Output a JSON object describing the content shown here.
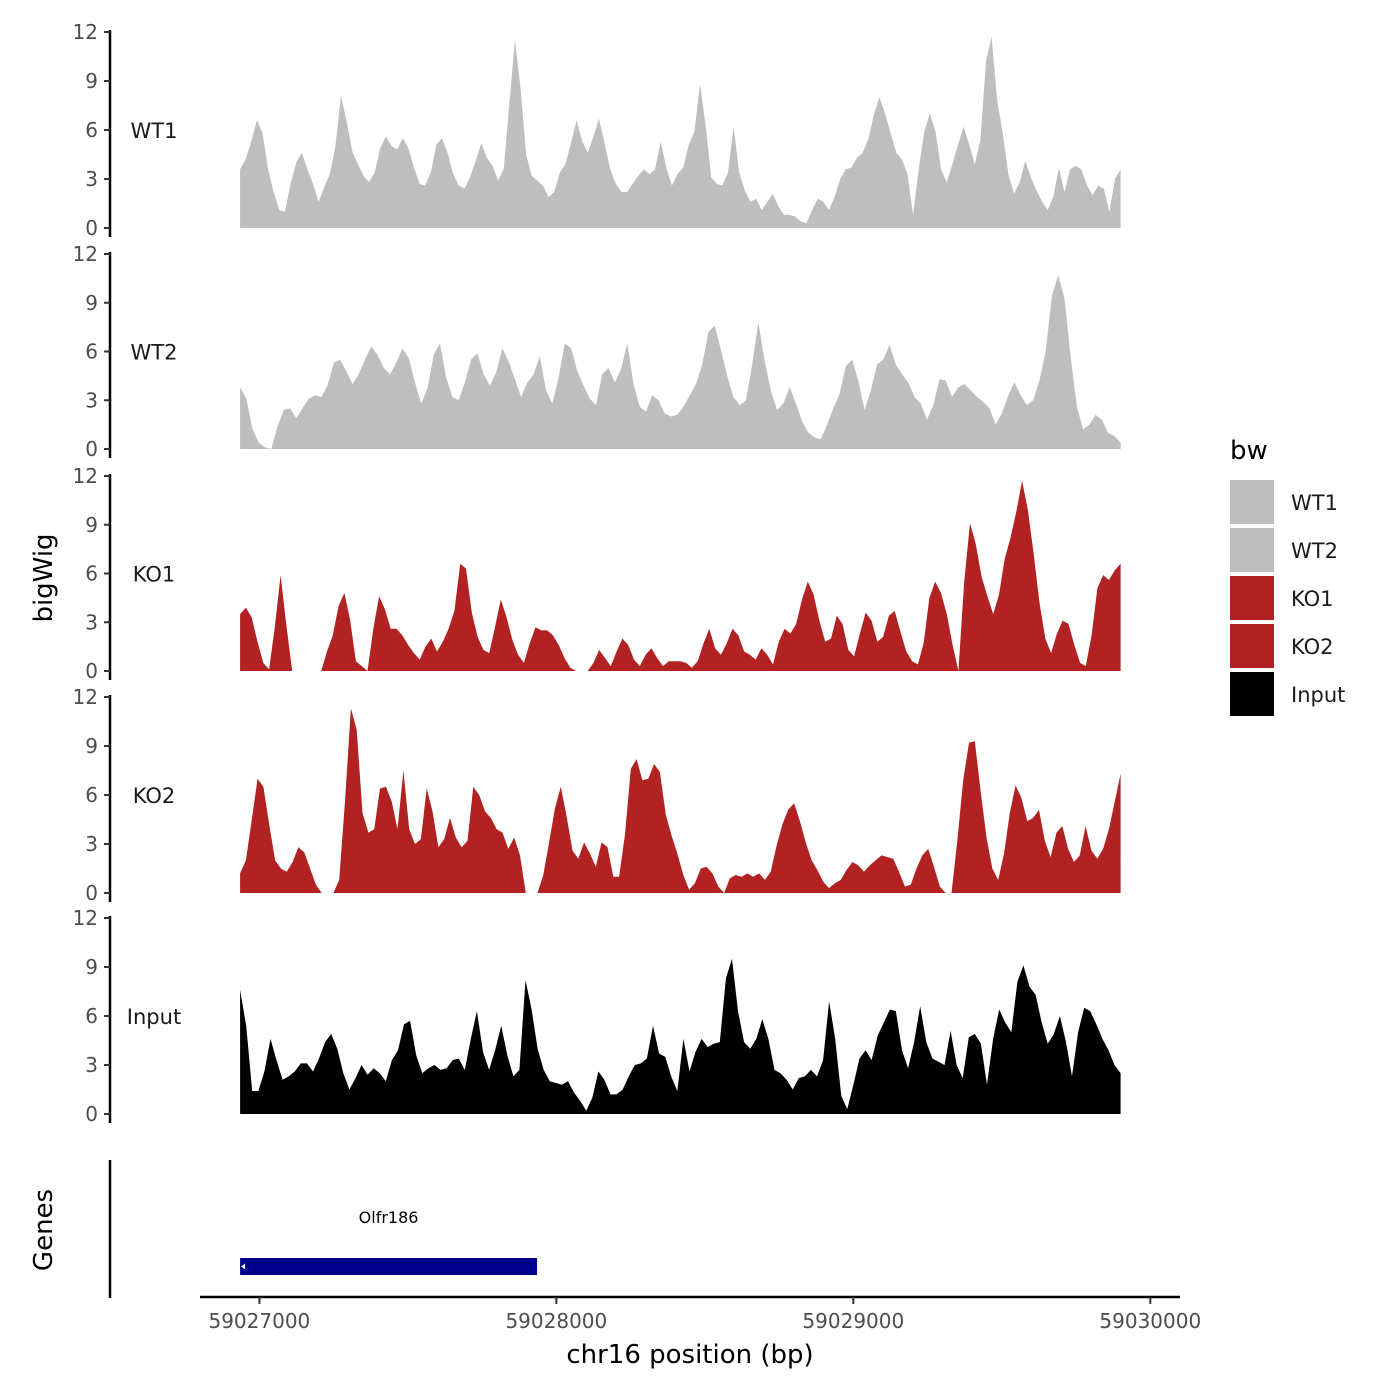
{
  "chart_data": {
    "type": "area",
    "title": "",
    "ylabel": "bigWig",
    "xlabel": "chr16 position (bp)",
    "ylim": [
      0,
      12
    ],
    "yticks": [
      0,
      3,
      6,
      9,
      12
    ],
    "xlim": [
      59026800,
      59030100
    ],
    "xticks": [
      59027000,
      59028000,
      59029000,
      59030000
    ],
    "xtick_labels": [
      "59027000",
      "59028000",
      "59029000",
      "59030000"
    ],
    "x_start": 59026935,
    "x_end": 59029900,
    "legend": {
      "title": "bw",
      "position": "right",
      "entries": [
        {
          "label": "WT1",
          "color": "#bebebe"
        },
        {
          "label": "WT2",
          "color": "#bebebe"
        },
        {
          "label": "KO1",
          "color": "#b22222"
        },
        {
          "label": "KO2",
          "color": "#b22222"
        },
        {
          "label": "Input",
          "color": "#000000"
        }
      ]
    },
    "series": [
      {
        "name": "WT1",
        "color": "#bebebe",
        "values": [
          3.6,
          4.2,
          5.3,
          6.6,
          5.8,
          3.6,
          2.2,
          1.1,
          1.0,
          2.7,
          4.0,
          4.6,
          3.6,
          2.7,
          1.6,
          2.5,
          3.3,
          5.0,
          8.1,
          6.5,
          4.7,
          3.9,
          3.2,
          2.8,
          3.4,
          4.9,
          5.6,
          5.0,
          4.8,
          5.5,
          4.9,
          3.7,
          2.7,
          2.6,
          3.4,
          5.1,
          5.5,
          4.6,
          3.3,
          2.6,
          2.4,
          3.1,
          4.1,
          5.2,
          4.3,
          3.8,
          2.9,
          3.6,
          7.6,
          11.5,
          8.6,
          4.5,
          3.2,
          2.9,
          2.6,
          1.9,
          2.2,
          3.4,
          3.9,
          5.2,
          6.6,
          5.3,
          4.6,
          5.6,
          6.7,
          5.2,
          3.6,
          2.7,
          2.2,
          2.2,
          2.7,
          3.2,
          3.6,
          3.3,
          3.6,
          5.3,
          3.7,
          2.6,
          3.3,
          3.7,
          5.1,
          5.9,
          8.8,
          6.3,
          3.1,
          2.7,
          2.6,
          3.4,
          6.2,
          3.4,
          2.3,
          1.6,
          1.8,
          1.1,
          1.6,
          2.1,
          1.3,
          0.8,
          0.8,
          0.7,
          0.4,
          0.3,
          1.1,
          1.8,
          1.6,
          1.1,
          1.9,
          3.0,
          3.6,
          3.7,
          4.3,
          4.6,
          5.4,
          6.9,
          8.0,
          7.0,
          5.8,
          4.6,
          4.2,
          3.3,
          0.8,
          3.6,
          5.9,
          7.0,
          5.9,
          3.6,
          2.8,
          3.9,
          5.1,
          6.2,
          5.1,
          3.9,
          5.4,
          10.2,
          11.7,
          7.8,
          5.8,
          3.3,
          2.1,
          2.8,
          4.1,
          3.1,
          2.3,
          1.6,
          1.1,
          1.9,
          3.7,
          2.2,
          3.6,
          3.8,
          3.6,
          2.6,
          2.0,
          2.6,
          2.4,
          1.0,
          3.0,
          3.6
        ]
      },
      {
        "name": "WT2",
        "color": "#bebebe",
        "values": [
          3.8,
          3.1,
          1.2,
          0.4,
          0.1,
          0.0,
          1.4,
          2.4,
          2.5,
          1.9,
          2.5,
          3.1,
          3.3,
          3.2,
          3.9,
          5.3,
          5.5,
          4.8,
          4.0,
          4.6,
          5.5,
          6.3,
          5.8,
          5.0,
          4.6,
          5.3,
          6.2,
          5.6,
          4.1,
          2.8,
          3.7,
          5.8,
          6.5,
          4.4,
          3.2,
          3.0,
          4.1,
          5.5,
          5.9,
          4.6,
          3.9,
          4.7,
          6.2,
          5.4,
          4.3,
          3.2,
          4.1,
          4.6,
          5.7,
          3.6,
          2.8,
          4.4,
          6.5,
          6.2,
          4.8,
          3.9,
          3.1,
          2.7,
          4.6,
          5.0,
          4.1,
          4.9,
          6.5,
          4.0,
          2.6,
          2.3,
          3.3,
          3.0,
          2.2,
          2.0,
          2.1,
          2.6,
          3.3,
          4.0,
          5.2,
          7.2,
          7.6,
          6.1,
          4.5,
          3.2,
          2.7,
          3.0,
          5.2,
          7.8,
          5.4,
          3.6,
          2.4,
          2.8,
          3.8,
          2.8,
          1.7,
          1.0,
          0.7,
          0.6,
          1.5,
          2.5,
          3.4,
          5.1,
          5.5,
          4.2,
          2.4,
          3.6,
          5.2,
          5.5,
          6.4,
          5.2,
          4.6,
          4.1,
          3.2,
          2.8,
          1.8,
          2.7,
          4.3,
          4.2,
          3.2,
          3.8,
          4.0,
          3.6,
          3.2,
          2.9,
          2.5,
          1.5,
          2.2,
          3.3,
          4.1,
          3.3,
          2.7,
          3.0,
          4.2,
          6.0,
          9.4,
          10.7,
          9.3,
          5.7,
          2.6,
          1.2,
          1.5,
          2.1,
          1.8,
          1.0,
          0.8,
          0.4
        ]
      },
      {
        "name": "KO1",
        "color": "#b22222",
        "values": [
          3.5,
          3.9,
          3.3,
          1.8,
          0.5,
          0.1,
          2.7,
          5.9,
          2.8,
          0.0,
          0.0,
          0.0,
          0.0,
          0.0,
          0.0,
          1.2,
          2.2,
          4.0,
          4.8,
          3.1,
          0.6,
          0.3,
          0.0,
          2.6,
          4.6,
          3.8,
          2.6,
          2.6,
          2.2,
          1.6,
          1.1,
          0.7,
          1.5,
          2.0,
          1.2,
          1.8,
          2.6,
          3.7,
          6.6,
          6.3,
          3.6,
          2.1,
          1.3,
          1.1,
          2.7,
          4.4,
          3.3,
          1.9,
          1.0,
          0.5,
          1.7,
          2.7,
          2.5,
          2.5,
          2.2,
          1.6,
          0.8,
          0.2,
          0.0,
          0.0,
          0.0,
          0.5,
          1.3,
          0.8,
          0.3,
          1.2,
          2.0,
          1.6,
          0.7,
          0.3,
          1.0,
          1.4,
          0.8,
          0.3,
          0.6,
          0.6,
          0.6,
          0.5,
          0.2,
          0.6,
          1.7,
          2.6,
          1.4,
          1.0,
          1.7,
          2.6,
          2.2,
          1.2,
          1.0,
          0.7,
          1.4,
          1.0,
          0.4,
          1.8,
          2.6,
          2.3,
          2.9,
          4.4,
          5.5,
          4.7,
          3.1,
          1.8,
          2.0,
          3.4,
          2.9,
          1.3,
          0.9,
          2.3,
          3.6,
          3.1,
          1.8,
          2.1,
          3.4,
          3.7,
          2.4,
          1.2,
          0.6,
          0.4,
          1.7,
          4.5,
          5.5,
          4.8,
          3.5,
          1.6,
          0.0,
          5.5,
          9.1,
          7.8,
          5.8,
          4.6,
          3.5,
          4.7,
          6.9,
          8.2,
          9.8,
          11.7,
          9.9,
          7.2,
          4.2,
          2.0,
          1.1,
          2.3,
          3.1,
          2.9,
          1.6,
          0.5,
          0.3,
          2.2,
          5.1,
          5.9,
          5.6,
          6.2,
          6.6
        ]
      },
      {
        "name": "KO2",
        "color": "#b22222",
        "values": [
          1.2,
          2.0,
          4.5,
          7.0,
          6.5,
          4.2,
          2.0,
          1.5,
          1.3,
          1.9,
          2.8,
          2.5,
          1.5,
          0.5,
          0.0,
          0.0,
          0.0,
          0.8,
          5.7,
          11.3,
          10.0,
          4.9,
          3.7,
          3.9,
          6.4,
          6.5,
          5.6,
          3.9,
          7.5,
          3.9,
          3.0,
          3.3,
          6.4,
          5.0,
          2.8,
          3.3,
          4.6,
          3.4,
          2.8,
          3.2,
          6.5,
          6.0,
          5.0,
          4.6,
          3.9,
          3.7,
          2.7,
          3.4,
          2.3,
          0.0,
          0.0,
          0.0,
          1.1,
          3.1,
          5.2,
          6.5,
          4.7,
          2.6,
          2.1,
          3.1,
          2.4,
          1.6,
          3.1,
          2.8,
          1.0,
          1.0,
          3.6,
          7.6,
          8.2,
          6.9,
          7.0,
          7.9,
          7.4,
          4.8,
          3.5,
          2.4,
          1.1,
          0.2,
          0.6,
          1.5,
          1.6,
          1.2,
          0.4,
          0.0,
          0.9,
          1.1,
          1.0,
          1.2,
          1.0,
          1.2,
          0.8,
          1.3,
          2.9,
          4.2,
          5.1,
          5.5,
          4.4,
          3.1,
          2.0,
          1.4,
          0.7,
          0.3,
          0.6,
          0.8,
          1.4,
          1.9,
          1.7,
          1.3,
          1.7,
          2.0,
          2.3,
          2.2,
          2.1,
          1.3,
          0.4,
          0.5,
          1.5,
          2.3,
          2.7,
          1.6,
          0.4,
          0.0,
          0.0,
          3.2,
          6.9,
          9.2,
          9.3,
          6.2,
          3.4,
          1.5,
          0.8,
          2.4,
          4.9,
          6.6,
          5.8,
          4.4,
          4.6,
          5.1,
          3.2,
          2.2,
          3.7,
          4.1,
          2.7,
          1.9,
          2.3,
          4.1,
          2.6,
          2.1,
          2.7,
          3.9,
          5.6,
          7.3
        ]
      },
      {
        "name": "Input",
        "color": "#000000",
        "values": [
          7.6,
          5.4,
          1.4,
          1.4,
          2.6,
          4.6,
          3.3,
          2.1,
          2.3,
          2.6,
          3.1,
          3.1,
          2.6,
          3.4,
          4.4,
          4.9,
          4.0,
          2.5,
          1.5,
          2.2,
          3.0,
          2.4,
          2.8,
          2.5,
          2.0,
          3.3,
          3.9,
          5.5,
          5.7,
          3.6,
          2.5,
          2.8,
          3.0,
          2.7,
          2.8,
          3.3,
          3.4,
          2.7,
          4.6,
          6.3,
          3.8,
          2.7,
          3.9,
          5.4,
          3.6,
          2.3,
          2.7,
          8.2,
          6.4,
          4.0,
          2.7,
          2.0,
          1.9,
          1.8,
          2.0,
          1.3,
          0.8,
          0.2,
          1.0,
          2.6,
          2.1,
          1.2,
          1.2,
          1.5,
          2.3,
          3.0,
          3.1,
          3.4,
          5.4,
          3.7,
          3.5,
          2.3,
          1.4,
          4.6,
          2.6,
          3.8,
          4.6,
          4.1,
          4.3,
          4.4,
          8.3,
          9.5,
          6.3,
          4.4,
          4.0,
          4.6,
          5.8,
          4.6,
          2.7,
          2.5,
          2.1,
          1.5,
          2.2,
          2.3,
          2.7,
          2.3,
          3.3,
          6.9,
          4.6,
          1.1,
          0.3,
          1.8,
          3.4,
          3.9,
          3.3,
          4.8,
          5.6,
          6.4,
          6.3,
          3.9,
          2.8,
          4.4,
          6.6,
          4.4,
          3.4,
          3.2,
          3.0,
          5.1,
          3.0,
          2.2,
          4.7,
          4.9,
          4.3,
          1.8,
          4.6,
          6.4,
          5.6,
          5.0,
          8.1,
          9.1,
          7.8,
          7.3,
          5.6,
          4.3,
          4.9,
          6.0,
          4.4,
          2.3,
          5.0,
          6.5,
          6.3,
          5.5,
          4.6,
          3.9,
          3.0,
          2.5
        ]
      }
    ],
    "gene_track": {
      "ylabel": "Genes",
      "genes": [
        {
          "name": "Olfr186",
          "start": 59026935,
          "end": 59027935,
          "strand": "-",
          "color": "#00008b"
        }
      ]
    }
  }
}
